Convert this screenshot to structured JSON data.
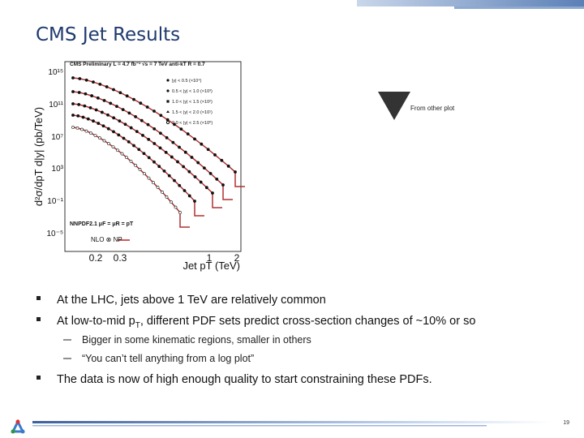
{
  "header": {
    "title": "CMS  Jet Results"
  },
  "figure": {
    "title": "CMS Preliminary L = 4.7 fb⁻¹ √s = 7 TeV anti-kT R = 0.7",
    "y_label": "d²σ/dpT d|y| (pb/TeV)",
    "x_label": "Jet pT (TeV)",
    "y_ticks": [
      "10¹⁵",
      "10¹¹",
      "10⁷",
      "10³",
      "10⁻¹",
      "10⁻⁵"
    ],
    "x_ticks": [
      "0.2",
      "0.3",
      "1",
      "2"
    ],
    "legend": [
      "|y| < 0.5 (×10⁴)",
      "0.5 < |y| < 1.0 (×10³)",
      "1.0 < |y| < 1.5 (×10²)",
      "1.5 < |y| < 2.0 (×10¹)",
      "2.0 < |y| < 2.5 (×10⁰)"
    ],
    "theory_legend": [
      "NNPDF2.1 μF = μR = pT",
      "NLO ⊗ NP"
    ]
  },
  "annotation": "From other plot",
  "bullets": [
    {
      "text": "At the LHC, jets above 1 TeV are relatively common"
    },
    {
      "before": "At low-to-mid p",
      "sub": "T",
      "after": ", different PDF sets predict cross-section changes of ~10% or so",
      "subbullets": [
        "Bigger in some kinematic regions, smaller in others",
        "“You can’t tell anything from a log plot”"
      ]
    },
    {
      "text": "The data is now of high enough quality to start constraining these PDFs."
    }
  ],
  "footer": {
    "page": "19"
  }
}
